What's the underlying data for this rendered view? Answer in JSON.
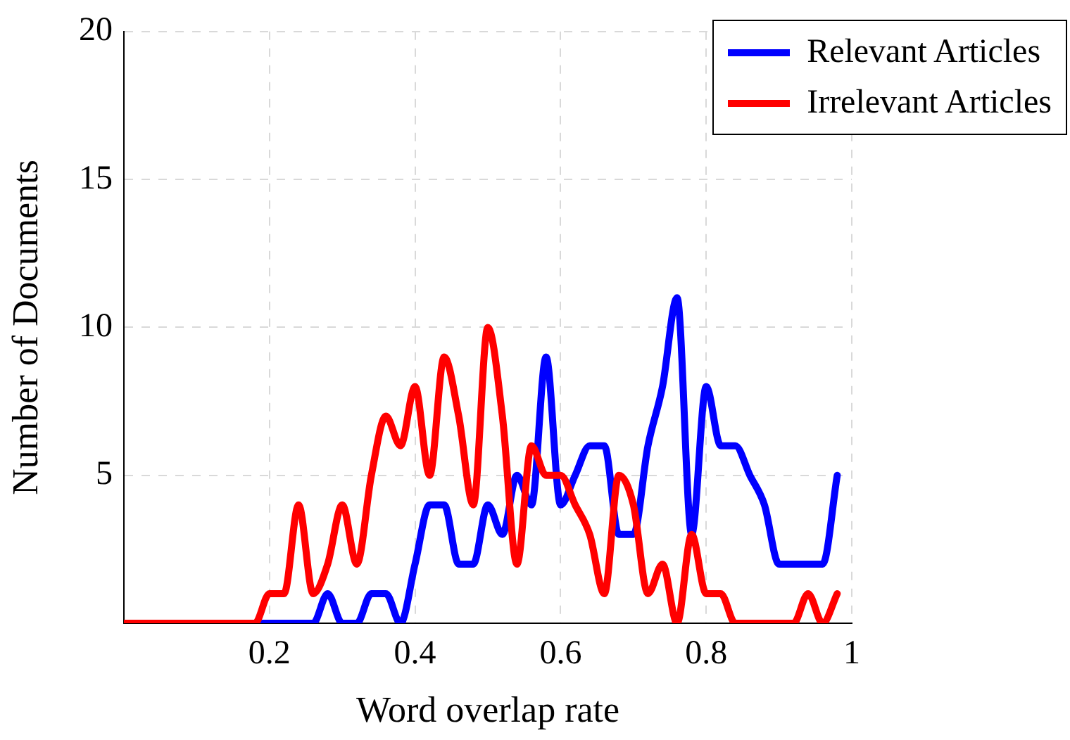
{
  "chart_data": {
    "type": "line",
    "xlabel": "Word overlap rate",
    "ylabel": "Number of Documents",
    "x": [
      0,
      0.02,
      0.04,
      0.06,
      0.08,
      0.1,
      0.12,
      0.14,
      0.16,
      0.18,
      0.2,
      0.22,
      0.24,
      0.26,
      0.28,
      0.3,
      0.32,
      0.34,
      0.36,
      0.38,
      0.4,
      0.42,
      0.44,
      0.46,
      0.48,
      0.5,
      0.52,
      0.54,
      0.56,
      0.58,
      0.6,
      0.62,
      0.64,
      0.66,
      0.68,
      0.7,
      0.72,
      0.74,
      0.76,
      0.78,
      0.8,
      0.82,
      0.84,
      0.86,
      0.88,
      0.9,
      0.92,
      0.94,
      0.96,
      0.98
    ],
    "series": [
      {
        "name": "Relevant Articles",
        "color": "#0000ff",
        "values": [
          null,
          null,
          null,
          null,
          null,
          null,
          null,
          null,
          null,
          0,
          0,
          0,
          0,
          0,
          1,
          0,
          0,
          1,
          1,
          0,
          2,
          4,
          4,
          2,
          2,
          4,
          3,
          5,
          4,
          9,
          4,
          5,
          6,
          6,
          3,
          3,
          6,
          8,
          11,
          3,
          8,
          6,
          6,
          5,
          4,
          2,
          2,
          2,
          2,
          5
        ]
      },
      {
        "name": "Irrelevant Articles",
        "color": "#ff0000",
        "values": [
          0,
          0,
          0,
          0,
          0,
          0,
          0,
          0,
          0,
          0,
          1,
          1,
          4,
          1,
          2,
          4,
          2,
          5,
          7,
          6,
          8,
          5,
          9,
          7,
          4,
          10,
          7,
          2,
          6,
          5,
          5,
          4,
          3,
          1,
          5,
          4,
          1,
          2,
          0,
          3,
          1,
          1,
          0,
          0,
          0,
          0,
          0,
          1,
          0,
          1
        ]
      }
    ],
    "xlim": [
      0,
      1
    ],
    "xticks": [
      0.2,
      0.4,
      0.6,
      0.8,
      1
    ],
    "ylim": [
      0,
      20
    ],
    "yticks": [
      5,
      10,
      15,
      20
    ],
    "grid": true,
    "legend": "top right",
    "marker": "none",
    "line_style": "solid"
  }
}
